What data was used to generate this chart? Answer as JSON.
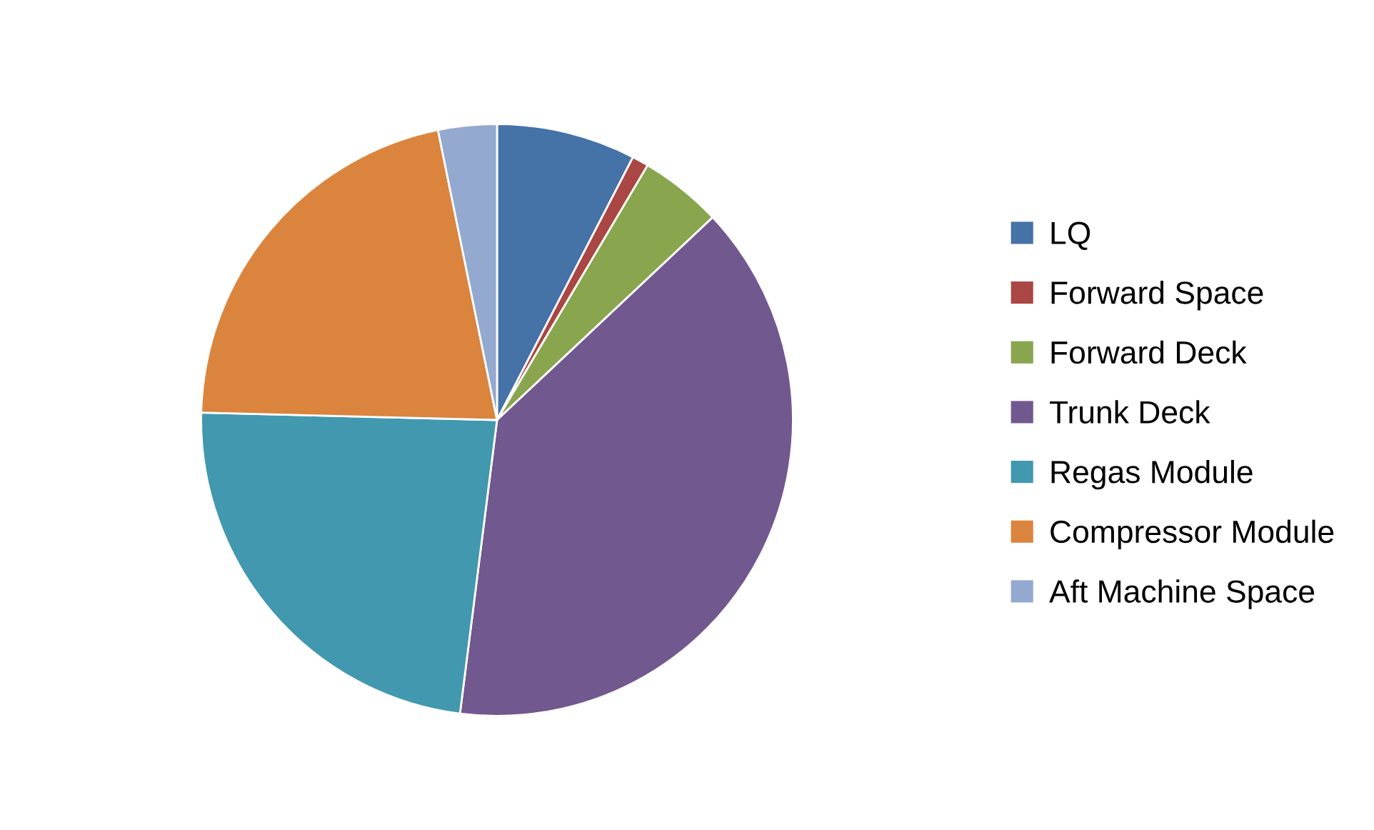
{
  "chart_data": {
    "type": "pie",
    "categories": [
      "LQ",
      "Forward Space",
      "Forward Deck",
      "Trunk Deck",
      "Regas Module",
      "Compressor Module",
      "Aft Machine Space"
    ],
    "values": [
      7.6,
      0.9,
      4.5,
      39.0,
      23.4,
      21.4,
      3.2
    ],
    "colors": [
      "#4572a7",
      "#aa4643",
      "#89a54e",
      "#71588f",
      "#4198af",
      "#db843d",
      "#93a9cf"
    ],
    "legend": "right"
  }
}
